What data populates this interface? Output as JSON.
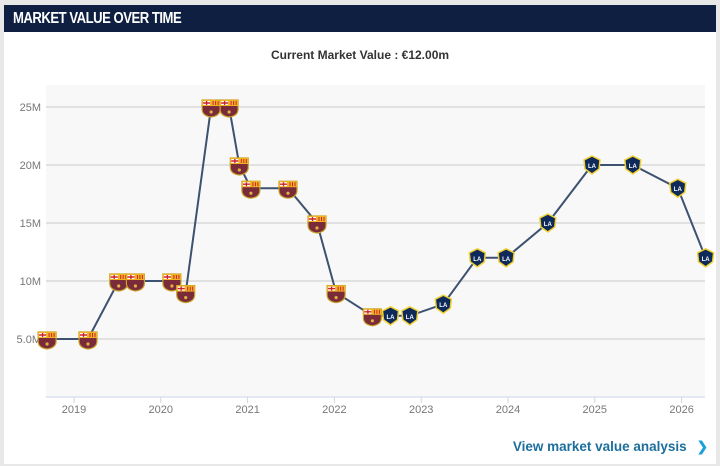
{
  "header": {
    "title": "MARKET VALUE OVER TIME"
  },
  "subtitle": "Current Market Value : €12.00m",
  "link": {
    "label": "View market value analysis",
    "icon": "chevron-right-icon"
  },
  "colors": {
    "header_bg": "#0e1f41",
    "line": "#3d5170",
    "link": "#1c6f9c"
  },
  "chart_data": {
    "type": "line",
    "title": "",
    "xlabel": "",
    "ylabel": "",
    "ylim": [
      0,
      27
    ],
    "y_ticks": [
      {
        "value": 5,
        "label": "5.0M"
      },
      {
        "value": 10,
        "label": "10M"
      },
      {
        "value": 15,
        "label": "15M"
      },
      {
        "value": 20,
        "label": "20M"
      },
      {
        "value": 25,
        "label": "25M"
      }
    ],
    "x_ticks": [
      "2019",
      "2020",
      "2021",
      "2022",
      "2023",
      "2024",
      "2025",
      "2026"
    ],
    "grid": "horizontal",
    "unit": "€ millions",
    "points": [
      {
        "date": "2018-09-10",
        "value": 5,
        "club": "barcelona"
      },
      {
        "date": "2019-03-01",
        "value": 5,
        "club": "barcelona"
      },
      {
        "date": "2019-07-08",
        "value": 10,
        "club": "barcelona"
      },
      {
        "date": "2019-09-16",
        "value": 10,
        "club": "barcelona"
      },
      {
        "date": "2020-02-17",
        "value": 10,
        "club": "barcelona"
      },
      {
        "date": "2020-04-15",
        "value": 9,
        "club": "barcelona"
      },
      {
        "date": "2020-07-31",
        "value": 25,
        "club": "barcelona"
      },
      {
        "date": "2020-10-15",
        "value": 25,
        "club": "barcelona"
      },
      {
        "date": "2020-11-27",
        "value": 20,
        "club": "barcelona"
      },
      {
        "date": "2021-01-15",
        "value": 18,
        "club": "barcelona"
      },
      {
        "date": "2021-06-20",
        "value": 18,
        "club": "barcelona"
      },
      {
        "date": "2021-10-20",
        "value": 15,
        "club": "barcelona"
      },
      {
        "date": "2022-01-08",
        "value": 9,
        "club": "barcelona"
      },
      {
        "date": "2022-06-10",
        "value": 7,
        "club": "barcelona"
      },
      {
        "date": "2022-08-25",
        "value": 7,
        "club": "la-galaxy"
      },
      {
        "date": "2022-11-14",
        "value": 7,
        "club": "la-galaxy"
      },
      {
        "date": "2023-04-04",
        "value": 8,
        "club": "la-galaxy"
      },
      {
        "date": "2023-08-25",
        "value": 12,
        "club": "la-galaxy"
      },
      {
        "date": "2023-12-24",
        "value": 12,
        "club": "la-galaxy"
      },
      {
        "date": "2024-06-17",
        "value": 15,
        "club": "la-galaxy"
      },
      {
        "date": "2024-12-20",
        "value": 20,
        "club": "la-galaxy"
      },
      {
        "date": "2025-06-10",
        "value": 20,
        "club": "la-galaxy"
      },
      {
        "date": "2025-12-16",
        "value": 18,
        "club": "la-galaxy"
      },
      {
        "date": "2026-04-12",
        "value": 12,
        "club": "la-galaxy"
      }
    ]
  }
}
